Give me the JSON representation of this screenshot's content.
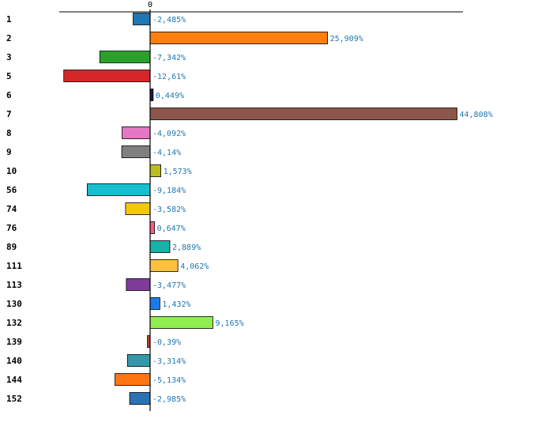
{
  "chart_data": {
    "type": "bar",
    "orientation": "horizontal",
    "title": "",
    "xlabel": "",
    "ylabel": "",
    "xlim": [
      -17,
      66
    ],
    "grid": false,
    "legend": "none",
    "zero_tick_label": "0",
    "value_suffix": "%",
    "categories": [
      "1",
      "2",
      "3",
      "5",
      "6",
      "7",
      "8",
      "9",
      "10",
      "56",
      "74",
      "76",
      "89",
      "111",
      "113",
      "130",
      "132",
      "139",
      "140",
      "144",
      "152"
    ],
    "values": [
      -2.485,
      25.909,
      -7.342,
      -12.61,
      0.449,
      44.808,
      -4.092,
      -4.14,
      1.573,
      -9.184,
      -3.582,
      0.647,
      2.889,
      4.062,
      -3.477,
      1.432,
      9.165,
      -0.39,
      -3.314,
      -5.134,
      -2.985
    ],
    "value_labels": [
      "-2,485%",
      "25,909%",
      "-7,342%",
      "-12,61%",
      "0,449%",
      "44,808%",
      "-4,092%",
      "-4,14%",
      "1,573%",
      "-9,184%",
      "-3,582%",
      "0,647%",
      "2,889%",
      "4,062%",
      "-3,477%",
      "1,432%",
      "9,165%",
      "-0,39%",
      "-3,314%",
      "-5,134%",
      "-2,985%"
    ],
    "colors": [
      "#1f77b4",
      "#ff7f0e",
      "#2ca02c",
      "#d62728",
      "#1a1a4e",
      "#8c564b",
      "#e377c2",
      "#7f7f7f",
      "#bcbd22",
      "#17becf",
      "#f2c811",
      "#ff5a8c",
      "#17b3a8",
      "#ffbf40",
      "#7d3c98",
      "#1a7be8",
      "#90ee50",
      "#c0392b",
      "#3399a8",
      "#ff7514",
      "#2a72b5"
    ]
  }
}
